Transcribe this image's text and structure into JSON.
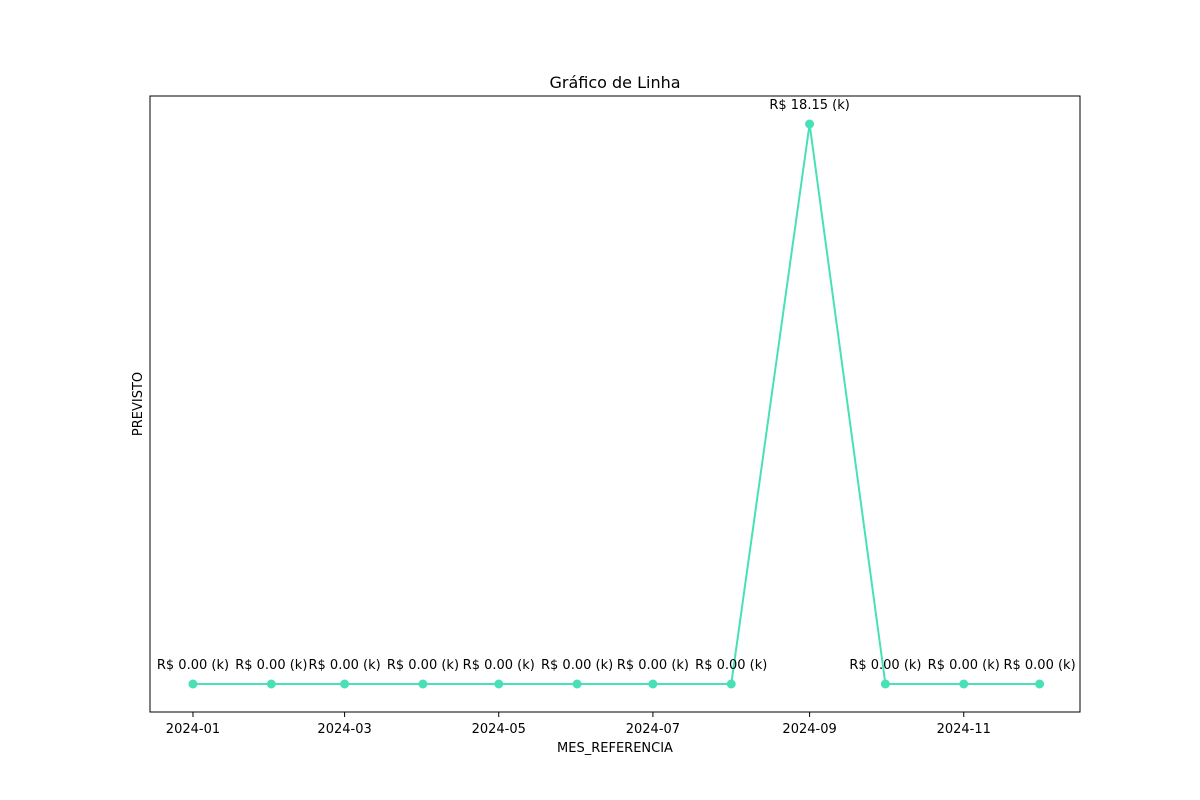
{
  "chart_data": {
    "type": "line",
    "title": "Gráfico de Linha",
    "xlabel": "MES_REFERENCIA",
    "ylabel": "PREVISTO",
    "x": [
      "2024-01-01",
      "2024-02-01",
      "2024-03-01",
      "2024-04-01",
      "2024-05-01",
      "2024-06-01",
      "2024-07-01",
      "2024-08-01",
      "2024-09-01",
      "2024-10-01",
      "2024-11-01",
      "2024-12-01"
    ],
    "series": [
      {
        "values": [
          0,
          0,
          0,
          0,
          0,
          0,
          0,
          0,
          18.15,
          0,
          0,
          0
        ]
      }
    ],
    "data_labels": [
      "R$ 0.00 (k)",
      "R$ 0.00 (k)",
      "R$ 0.00 (k)",
      "R$ 0.00 (k)",
      "R$ 0.00 (k)",
      "R$ 0.00 (k)",
      "R$ 0.00 (k)",
      "R$ 0.00 (k)",
      "R$ 18.15 (k)",
      "R$ 0.00 (k)",
      "R$ 0.00 (k)",
      "R$ 0.00 (k)"
    ],
    "xticks": [
      "2024-01",
      "2024-03",
      "2024-05",
      "2024-07",
      "2024-09",
      "2024-11"
    ],
    "xlim": [
      "2023-12-15",
      "2024-12-17"
    ],
    "ylim": [
      -0.9075,
      19.0575
    ],
    "yticks_visible": false,
    "grid": false,
    "color": "#48e0b6"
  }
}
